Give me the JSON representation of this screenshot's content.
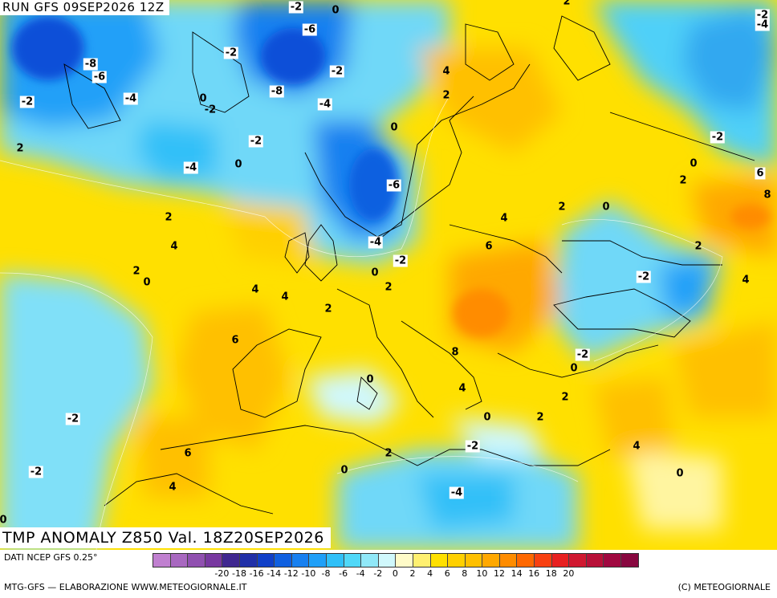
{
  "header": {
    "run": "RUN GFS 09SEP2026 12Z"
  },
  "title": "TMP ANOMALY Z850 Val. 18Z20SEP2026",
  "footer": {
    "source": "DATI NCEP GFS 0.25°",
    "credit": "MTG-GFS — ELABORAZIONE WWW.METEOGIORNALE.IT",
    "copyright": "(C) METEOGIORNALE"
  },
  "legend": {
    "colors": [
      "#c080d0",
      "#a868c0",
      "#9050b0",
      "#7838a0",
      "#402890",
      "#2030a8",
      "#1040c8",
      "#1060e0",
      "#1880f0",
      "#20a0f8",
      "#30c0f8",
      "#50d8f8",
      "#90e8f8",
      "#d0f8fc",
      "#fffbc8",
      "#fff070",
      "#ffe000",
      "#ffd000",
      "#ffc000",
      "#ffa800",
      "#ff8c00",
      "#ff6800",
      "#f84010",
      "#e82020",
      "#d01830",
      "#b81038",
      "#a00840",
      "#880840"
    ],
    "ticks": [
      "-20",
      "-18",
      "-16",
      "-14",
      "-12",
      "-10",
      "-8",
      "-6",
      "-4",
      "-2",
      "0",
      "2",
      "4",
      "6",
      "8",
      "10",
      "12",
      "14",
      "16",
      "18",
      "20"
    ]
  },
  "contour_labels": [
    {
      "t": "-2"
    },
    {
      "t": "0"
    },
    {
      "t": "-2"
    },
    {
      "t": "-4"
    },
    {
      "t": "2"
    },
    {
      "t": "-6"
    },
    {
      "t": "-2"
    },
    {
      "t": "-8"
    },
    {
      "t": "-6"
    },
    {
      "t": "-2"
    },
    {
      "t": "4"
    },
    {
      "t": "-2"
    },
    {
      "t": "-4"
    },
    {
      "t": "0"
    },
    {
      "t": "-2"
    },
    {
      "t": "-8"
    },
    {
      "t": "2"
    },
    {
      "t": "-4"
    },
    {
      "t": "0"
    },
    {
      "t": "2"
    },
    {
      "t": "-2"
    },
    {
      "t": "-2"
    },
    {
      "t": "-4"
    },
    {
      "t": "0"
    },
    {
      "t": "0"
    },
    {
      "t": "2"
    },
    {
      "t": "6"
    },
    {
      "t": "-6"
    },
    {
      "t": "8"
    },
    {
      "t": "2"
    },
    {
      "t": "2"
    },
    {
      "t": "0"
    },
    {
      "t": "4"
    },
    {
      "t": "4"
    },
    {
      "t": "-4"
    },
    {
      "t": "2"
    },
    {
      "t": "-2"
    },
    {
      "t": "6"
    },
    {
      "t": "2"
    },
    {
      "t": "0"
    },
    {
      "t": "-2"
    },
    {
      "t": "4"
    },
    {
      "t": "0"
    },
    {
      "t": "2"
    },
    {
      "t": "4"
    },
    {
      "t": "4"
    },
    {
      "t": "2"
    },
    {
      "t": "6"
    },
    {
      "t": "8"
    },
    {
      "t": "-2"
    },
    {
      "t": "0"
    },
    {
      "t": "0"
    },
    {
      "t": "4"
    },
    {
      "t": "2"
    },
    {
      "t": "-2"
    },
    {
      "t": "0"
    },
    {
      "t": "2"
    },
    {
      "t": "-2"
    },
    {
      "t": "4"
    },
    {
      "t": "6"
    },
    {
      "t": "-2"
    },
    {
      "t": "2"
    },
    {
      "t": "0"
    },
    {
      "t": "0"
    },
    {
      "t": "4"
    },
    {
      "t": "-4"
    },
    {
      "t": "0"
    },
    {
      "t": "-4"
    },
    {
      "t": "0"
    }
  ]
}
